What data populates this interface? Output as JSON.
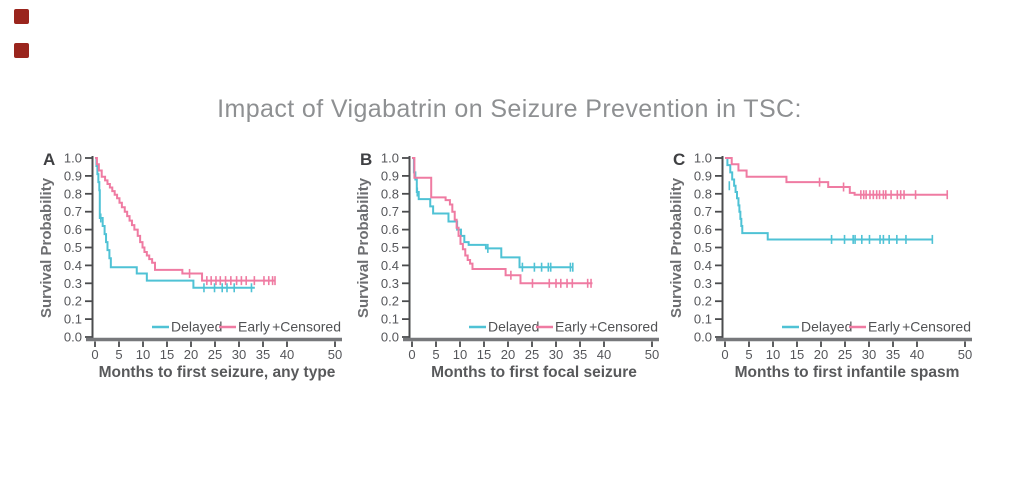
{
  "title": {
    "text": "Impact of Vigabatrin on Seizure Prevention in TSC:"
  },
  "icons": [
    {
      "name": "broken-image-icon-top"
    },
    {
      "name": "broken-image-icon-bottom"
    }
  ],
  "colors": {
    "delayed": "#4fc2d5",
    "early": "#ef7ba2",
    "axis_line": "#77787b",
    "tick_mark": "#4b4c4e",
    "tick_text": "#55565a",
    "axis_label_text": "#58595b",
    "panel_letter": "#3f4043",
    "legend_text": "#515254",
    "title_text": "#8e9092",
    "broken_image_red": "#9a251d",
    "background": "#ffffff"
  },
  "legend": {
    "delayed_label": "Delayed",
    "early_label": "Early",
    "censored_label": "+Censored",
    "position": "inside-bottom-right"
  },
  "chart_data": [
    {
      "panel_label": "A",
      "type": "line",
      "subtype": "kaplan-meier-step",
      "xlabel": "Months to first seizure, any type",
      "ylabel": "Survival Probability",
      "xlim": [
        0,
        50
      ],
      "ylim": [
        0.0,
        1.0
      ],
      "x_ticks": [
        0,
        5,
        10,
        15,
        20,
        25,
        30,
        35,
        40,
        50
      ],
      "y_ticks": [
        0.0,
        0.1,
        0.2,
        0.3,
        0.4,
        0.5,
        0.6,
        0.7,
        0.8,
        0.9,
        1.0
      ],
      "grid": false,
      "series": [
        {
          "name": "Delayed",
          "color": "#4fc2d5",
          "steps": [
            [
              0,
              1.0
            ],
            [
              0.3,
              0.955
            ],
            [
              0.5,
              0.91
            ],
            [
              0.7,
              0.865
            ],
            [
              0.9,
              0.82
            ],
            [
              1.0,
              0.665
            ],
            [
              1.6,
              0.62
            ],
            [
              2.0,
              0.575
            ],
            [
              2.3,
              0.53
            ],
            [
              2.6,
              0.485
            ],
            [
              3.0,
              0.44
            ],
            [
              3.3,
              0.39
            ],
            [
              8.7,
              0.355
            ],
            [
              10.8,
              0.315
            ],
            [
              20.5,
              0.275
            ]
          ],
          "end_x": 33.3,
          "censored": [
            [
              1.2,
              0.665
            ],
            [
              22.7,
              0.275
            ],
            [
              24.9,
              0.275
            ],
            [
              26.5,
              0.275
            ],
            [
              27.5,
              0.275
            ],
            [
              29.0,
              0.275
            ],
            [
              32.6,
              0.275
            ]
          ]
        },
        {
          "name": "Early",
          "color": "#ef7ba2",
          "steps": [
            [
              0,
              1.0
            ],
            [
              0.4,
              0.965
            ],
            [
              0.8,
              0.93
            ],
            [
              1.4,
              0.895
            ],
            [
              2.1,
              0.875
            ],
            [
              2.6,
              0.855
            ],
            [
              3.1,
              0.835
            ],
            [
              3.6,
              0.815
            ],
            [
              4.1,
              0.795
            ],
            [
              4.6,
              0.775
            ],
            [
              5.1,
              0.75
            ],
            [
              5.6,
              0.725
            ],
            [
              6.2,
              0.7
            ],
            [
              6.7,
              0.675
            ],
            [
              7.2,
              0.65
            ],
            [
              7.7,
              0.625
            ],
            [
              8.2,
              0.6
            ],
            [
              8.9,
              0.565
            ],
            [
              9.4,
              0.53
            ],
            [
              9.9,
              0.5
            ],
            [
              10.3,
              0.475
            ],
            [
              10.8,
              0.455
            ],
            [
              11.3,
              0.435
            ],
            [
              11.9,
              0.415
            ],
            [
              12.5,
              0.375
            ],
            [
              18.2,
              0.355
            ],
            [
              22.3,
              0.315
            ]
          ],
          "end_x": 37.6,
          "censored": [
            [
              19.7,
              0.355
            ],
            [
              23.3,
              0.315
            ],
            [
              24.2,
              0.315
            ],
            [
              25.2,
              0.315
            ],
            [
              26.1,
              0.315
            ],
            [
              27.2,
              0.315
            ],
            [
              28.3,
              0.315
            ],
            [
              29.5,
              0.315
            ],
            [
              30.5,
              0.315
            ],
            [
              31.5,
              0.315
            ],
            [
              33.2,
              0.315
            ],
            [
              35.2,
              0.315
            ],
            [
              36.2,
              0.315
            ],
            [
              37.0,
              0.315
            ],
            [
              37.5,
              0.315
            ]
          ]
        }
      ]
    },
    {
      "panel_label": "B",
      "type": "line",
      "subtype": "kaplan-meier-step",
      "xlabel": "Months to first focal seizure",
      "ylabel": "Survival Probability",
      "xlim": [
        0,
        50
      ],
      "ylim": [
        0.0,
        1.0
      ],
      "x_ticks": [
        0,
        5,
        10,
        15,
        20,
        25,
        30,
        35,
        40,
        50
      ],
      "y_ticks": [
        0.0,
        0.1,
        0.2,
        0.3,
        0.4,
        0.5,
        0.6,
        0.7,
        0.8,
        0.9,
        1.0
      ],
      "grid": false,
      "series": [
        {
          "name": "Delayed",
          "color": "#4fc2d5",
          "steps": [
            [
              0,
              1.0
            ],
            [
              0.4,
              0.92
            ],
            [
              0.7,
              0.88
            ],
            [
              1.0,
              0.81
            ],
            [
              1.4,
              0.77
            ],
            [
              3.8,
              0.73
            ],
            [
              4.4,
              0.69
            ],
            [
              7.6,
              0.645
            ],
            [
              9.4,
              0.6
            ],
            [
              10.2,
              0.565
            ],
            [
              10.9,
              0.53
            ],
            [
              11.8,
              0.515
            ],
            [
              15.4,
              0.495
            ],
            [
              18.6,
              0.445
            ],
            [
              22.4,
              0.39
            ]
          ],
          "end_x": 33.6,
          "censored": [
            [
              1.1,
              0.81
            ],
            [
              15.8,
              0.495
            ],
            [
              23.0,
              0.39
            ],
            [
              25.5,
              0.39
            ],
            [
              27.0,
              0.39
            ],
            [
              28.4,
              0.39
            ],
            [
              28.9,
              0.39
            ],
            [
              33.0,
              0.39
            ],
            [
              33.5,
              0.39
            ]
          ]
        },
        {
          "name": "Early",
          "color": "#ef7ba2",
          "steps": [
            [
              0,
              1.0
            ],
            [
              0.5,
              0.89
            ],
            [
              4.0,
              0.78
            ],
            [
              7.0,
              0.765
            ],
            [
              7.9,
              0.74
            ],
            [
              8.4,
              0.7
            ],
            [
              8.9,
              0.655
            ],
            [
              9.3,
              0.61
            ],
            [
              9.7,
              0.565
            ],
            [
              10.1,
              0.52
            ],
            [
              10.6,
              0.49
            ],
            [
              11.1,
              0.455
            ],
            [
              11.6,
              0.43
            ],
            [
              12.1,
              0.41
            ],
            [
              12.6,
              0.38
            ],
            [
              19.5,
              0.345
            ],
            [
              22.6,
              0.3
            ]
          ],
          "end_x": 37.6,
          "censored": [
            [
              20.6,
              0.345
            ],
            [
              25.1,
              0.3
            ],
            [
              28.6,
              0.3
            ],
            [
              30.0,
              0.3
            ],
            [
              31.0,
              0.3
            ],
            [
              32.3,
              0.3
            ],
            [
              33.4,
              0.3
            ],
            [
              36.6,
              0.3
            ],
            [
              37.3,
              0.3
            ]
          ]
        }
      ]
    },
    {
      "panel_label": "C",
      "type": "line",
      "subtype": "kaplan-meier-step",
      "xlabel": "Months to first infantile spasm",
      "ylabel": "Survival Probability",
      "xlim": [
        0,
        50
      ],
      "ylim": [
        0.0,
        1.0
      ],
      "x_ticks": [
        0,
        5,
        10,
        15,
        20,
        25,
        30,
        35,
        40,
        50
      ],
      "y_ticks": [
        0.0,
        0.1,
        0.2,
        0.3,
        0.4,
        0.5,
        0.6,
        0.7,
        0.8,
        0.9,
        1.0
      ],
      "grid": false,
      "series": [
        {
          "name": "Delayed",
          "color": "#4fc2d5",
          "steps": [
            [
              0,
              1.0
            ],
            [
              0.5,
              0.96
            ],
            [
              1.1,
              0.92
            ],
            [
              1.5,
              0.88
            ],
            [
              1.9,
              0.845
            ],
            [
              2.2,
              0.81
            ],
            [
              2.5,
              0.775
            ],
            [
              2.8,
              0.735
            ],
            [
              3.0,
              0.7
            ],
            [
              3.2,
              0.66
            ],
            [
              3.4,
              0.62
            ],
            [
              3.6,
              0.58
            ],
            [
              8.9,
              0.545
            ]
          ],
          "end_x": 43.3,
          "censored": [
            [
              0.9,
              0.845
            ],
            [
              22.2,
              0.545
            ],
            [
              24.9,
              0.545
            ],
            [
              26.7,
              0.545
            ],
            [
              27.1,
              0.545
            ],
            [
              28.5,
              0.545
            ],
            [
              30.1,
              0.545
            ],
            [
              32.3,
              0.545
            ],
            [
              33.0,
              0.545
            ],
            [
              34.2,
              0.545
            ],
            [
              35.8,
              0.545
            ],
            [
              37.7,
              0.545
            ],
            [
              43.2,
              0.545
            ]
          ]
        },
        {
          "name": "Early",
          "color": "#ef7ba2",
          "steps": [
            [
              0,
              1.0
            ],
            [
              1.4,
              0.965
            ],
            [
              2.8,
              0.93
            ],
            [
              4.5,
              0.895
            ],
            [
              12.8,
              0.865
            ],
            [
              21.5,
              0.838
            ],
            [
              26.0,
              0.805
            ],
            [
              27.0,
              0.795
            ]
          ],
          "end_x": 46.4,
          "censored": [
            [
              19.7,
              0.865
            ],
            [
              24.7,
              0.838
            ],
            [
              28.3,
              0.795
            ],
            [
              28.9,
              0.795
            ],
            [
              29.4,
              0.795
            ],
            [
              30.2,
              0.795
            ],
            [
              30.9,
              0.795
            ],
            [
              31.6,
              0.795
            ],
            [
              32.2,
              0.795
            ],
            [
              33.0,
              0.795
            ],
            [
              33.5,
              0.795
            ],
            [
              34.6,
              0.795
            ],
            [
              35.9,
              0.795
            ],
            [
              36.6,
              0.795
            ],
            [
              37.3,
              0.795
            ],
            [
              39.7,
              0.795
            ],
            [
              46.3,
              0.795
            ]
          ]
        }
      ]
    }
  ]
}
